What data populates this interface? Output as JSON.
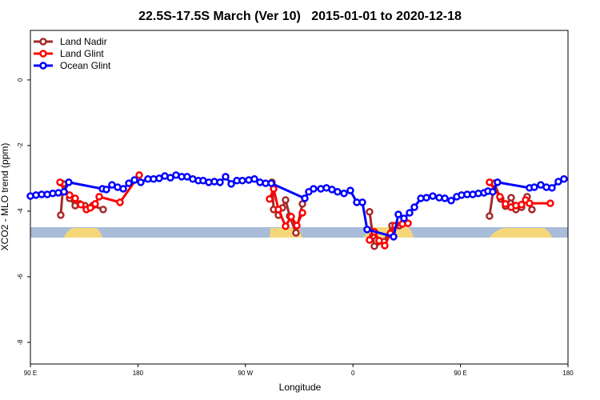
{
  "chart_data": {
    "type": "line",
    "title": "22.5S-17.5S March (Ver 10)   2015-01-01 to 2020-12-18",
    "x_label": "Longitude",
    "y_label": "XCO2 - MLO trend (ppm)",
    "xlim": [
      90,
      540
    ],
    "ylim": [
      1.51,
      -8.66
    ],
    "xticks": [
      {
        "value": 90,
        "label": "90 E"
      },
      180,
      {
        "value": 270,
        "label": "90 W"
      },
      {
        "value": 360,
        "label": "0"
      },
      {
        "value": 450,
        "label": "90 E"
      },
      {
        "value": 540,
        "label": "180"
      }
    ],
    "yticks": [
      0,
      -2,
      -4,
      -6,
      -8
    ],
    "legend": "top-left",
    "series": [
      {
        "name": "Land Nadir",
        "color": "#a52a2a",
        "x": [
          115.4,
          117.5,
          122.8,
          127.5,
          131.5,
          135.5,
          142.2,
          150.9,
          null,
          292.2,
          293.6,
          297.6,
          300.9,
          303.6,
          307,
          312.3,
          317.7,
          null,
          373.9,
          376.6,
          377.9,
          386,
          392.7,
          398.7,
          402.7,
          null,
          474.3,
          478.3,
          483.7,
          487.7,
          492.4,
          496.4,
          501.1,
          505.8,
          509.8
        ],
        "values": [
          -4.12,
          -3.17,
          -3.61,
          -3.83,
          -3.78,
          -3.83,
          -3.83,
          -3.95,
          null,
          -3.12,
          -3.95,
          -4.12,
          -3.9,
          -3.66,
          -4.15,
          -4.66,
          -3.78,
          null,
          -4.02,
          -4.76,
          -5.07,
          -4.93,
          -4.44,
          -4.44,
          -4.32,
          null,
          -4.15,
          -3.15,
          -3.63,
          -3.85,
          -3.59,
          -3.95,
          -3.88,
          -3.56,
          -3.95
        ]
      },
      {
        "name": "Land Glint",
        "color": "#ff0000",
        "x": [
          114.8,
          122.8,
          127.5,
          132.2,
          136.9,
          140.2,
          144.2,
          147.6,
          165,
          181.1,
          null,
          290.2,
          293.6,
          297.6,
          303.6,
          308.3,
          313,
          317.7,
          null,
          373.9,
          377.9,
          381.9,
          386.6,
          391.3,
          395.3,
          401.4,
          406.1,
          null,
          474.3,
          483,
          487.7,
          492.4,
          496.4,
          501.1,
          504.5,
          507.8,
          525.2
        ],
        "values": [
          -3.12,
          -3.51,
          -3.61,
          -3.8,
          -3.95,
          -3.9,
          -3.78,
          -3.56,
          -3.73,
          -2.9,
          null,
          -3.63,
          -3.32,
          -3.95,
          -4.46,
          -4.17,
          -4.44,
          -4.05,
          null,
          -4.88,
          -4.63,
          -4.9,
          -5.05,
          -4.68,
          -4.44,
          -4.39,
          -4.37,
          null,
          -3.12,
          -3.56,
          -3.78,
          -3.88,
          -3.83,
          -3.8,
          -3.66,
          -3.76,
          -3.76
        ]
      },
      {
        "name": "Ocean Glint",
        "color": "#0000ff",
        "x": [
          90,
          94.7,
          99.4,
          104.1,
          108.7,
          113.4,
          118.1,
          122.1,
          150.3,
          153.6,
          158.3,
          163,
          167.7,
          172.4,
          177.1,
          182.4,
          188.4,
          193.1,
          197.8,
          202.5,
          207.2,
          211.9,
          216.6,
          221.2,
          225.9,
          230.6,
          234.6,
          239.3,
          244,
          248.7,
          253.4,
          258.1,
          262.8,
          267.4,
          272.8,
          277.5,
          282.2,
          286.9,
          291.6,
          319.7,
          323,
          327,
          333.1,
          337.8,
          342.4,
          347.1,
          352.5,
          357.8,
          363.2,
          367.9,
          371.9,
          394,
          398,
          402.7,
          407.4,
          411.4,
          416.8,
          421.5,
          426.8,
          432.2,
          436.9,
          442.2,
          446.9,
          450.9,
          455.6,
          460.3,
          465,
          469.7,
          473,
          477,
          481,
          507.8,
          511.8,
          517.2,
          521.9,
          526.6,
          531.9,
          536.6
        ],
        "values": [
          -3.54,
          -3.51,
          -3.49,
          -3.49,
          -3.46,
          -3.44,
          -3.41,
          -3.12,
          -3.32,
          -3.34,
          -3.2,
          -3.27,
          -3.32,
          -3.15,
          -3.05,
          -3.12,
          -3.02,
          -3.02,
          -3.0,
          -2.93,
          -2.98,
          -2.9,
          -2.95,
          -2.95,
          -3.02,
          -3.07,
          -3.07,
          -3.12,
          -3.1,
          -3.12,
          -2.95,
          -3.17,
          -3.07,
          -3.07,
          -3.05,
          -3.02,
          -3.12,
          -3.15,
          -3.15,
          -3.61,
          -3.41,
          -3.32,
          -3.32,
          -3.29,
          -3.34,
          -3.41,
          -3.46,
          -3.37,
          -3.73,
          -3.73,
          -4.56,
          -4.78,
          -4.1,
          -4.22,
          -4.05,
          -3.88,
          -3.61,
          -3.59,
          -3.54,
          -3.59,
          -3.61,
          -3.68,
          -3.56,
          -3.51,
          -3.49,
          -3.49,
          -3.46,
          -3.44,
          -3.39,
          -3.41,
          -3.12,
          -3.29,
          -3.27,
          -3.2,
          -3.27,
          -3.29,
          -3.1,
          -3.02
        ]
      }
    ]
  }
}
